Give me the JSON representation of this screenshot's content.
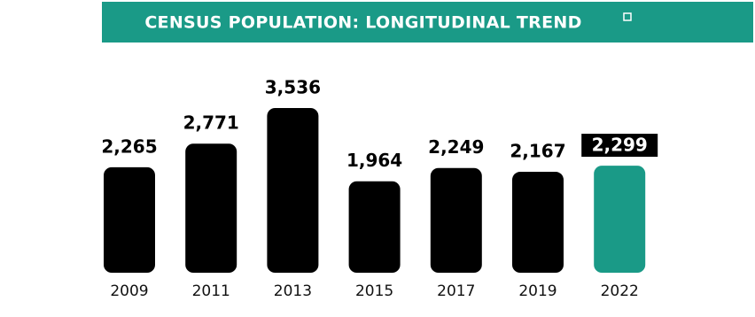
{
  "chart_data": {
    "type": "bar",
    "title": "CENSUS POPULATION: LONGITUDINAL TREND",
    "categories": [
      "2009",
      "2011",
      "2013",
      "2015",
      "2017",
      "2019",
      "2022"
    ],
    "values": [
      2265,
      2771,
      3536,
      1964,
      2249,
      2167,
      2299
    ],
    "value_labels": [
      "2,265",
      "2,771",
      "3,536",
      "1,964",
      "2,249",
      "2,167",
      "2,299"
    ],
    "colors": [
      "#000000",
      "#000000",
      "#000000",
      "#000000",
      "#000000",
      "#000000",
      "#1a9a87"
    ],
    "banner_color": "#1a9a87"
  }
}
